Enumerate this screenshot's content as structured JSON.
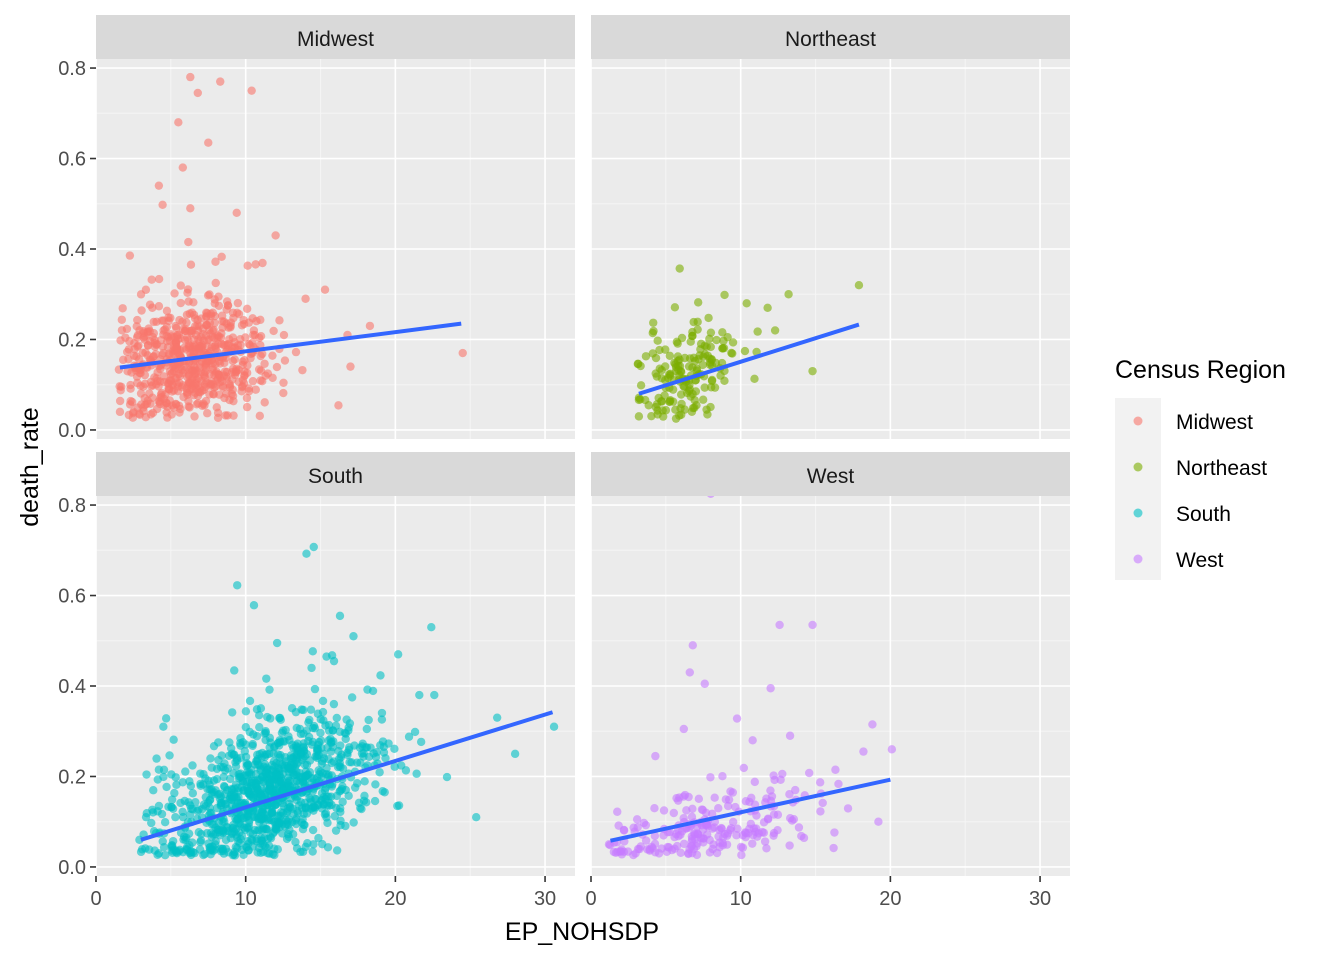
{
  "chart_data": {
    "type": "scatter",
    "facet_layout": "2x2",
    "xlabel": "EP_NOHSDP",
    "ylabel": "death_rate",
    "xlim": [
      0,
      32
    ],
    "ylim": [
      -0.02,
      0.82
    ],
    "x_ticks": [
      0,
      10,
      20,
      30
    ],
    "y_ticks": [
      0.0,
      0.2,
      0.4,
      0.6,
      0.8
    ],
    "x_tick_labels": [
      "0",
      "10",
      "20",
      "30"
    ],
    "y_tick_labels": [
      "0.0",
      "0.2",
      "0.4",
      "0.6",
      "0.8"
    ],
    "legend": {
      "title": "Census Region",
      "placement": "right",
      "entries": [
        "Midwest",
        "Northeast",
        "South",
        "West"
      ]
    },
    "grid": true,
    "point_alpha": 0.6,
    "trend_color": "#3366FF",
    "panels": [
      {
        "name": "Midwest",
        "color": "#F8766D",
        "trend": {
          "x": [
            1.6,
            24.4
          ],
          "y": [
            0.138,
            0.235
          ]
        },
        "notable_points": [
          {
            "x": 6.3,
            "y": 0.78
          },
          {
            "x": 8.3,
            "y": 0.77
          },
          {
            "x": 10.4,
            "y": 0.75
          },
          {
            "x": 6.8,
            "y": 0.745
          },
          {
            "x": 5.5,
            "y": 0.68
          },
          {
            "x": 7.5,
            "y": 0.635
          },
          {
            "x": 5.8,
            "y": 0.58
          },
          {
            "x": 4.2,
            "y": 0.54
          },
          {
            "x": 6.3,
            "y": 0.49
          },
          {
            "x": 9.4,
            "y": 0.48
          },
          {
            "x": 12.0,
            "y": 0.43
          },
          {
            "x": 15.3,
            "y": 0.31
          },
          {
            "x": 14.0,
            "y": 0.29
          },
          {
            "x": 18.3,
            "y": 0.23
          },
          {
            "x": 16.8,
            "y": 0.21
          },
          {
            "x": 17.0,
            "y": 0.14
          },
          {
            "x": 24.5,
            "y": 0.17
          },
          {
            "x": 1.6,
            "y": 0.04
          },
          {
            "x": 2.5,
            "y": 0.04
          }
        ],
        "cloud": {
          "x_center": 6.5,
          "x_spread": 2.6,
          "y_center": 0.15,
          "y_spread": 0.06,
          "x_range": [
            1.5,
            19
          ],
          "count": 640
        }
      },
      {
        "name": "Northeast",
        "color": "#7CAE00",
        "trend": {
          "x": [
            3.2,
            17.9
          ],
          "y": [
            0.08,
            0.233
          ]
        },
        "notable_points": [
          {
            "x": 17.9,
            "y": 0.32
          },
          {
            "x": 13.2,
            "y": 0.3
          },
          {
            "x": 11.8,
            "y": 0.27
          },
          {
            "x": 10.4,
            "y": 0.28
          },
          {
            "x": 14.8,
            "y": 0.13
          },
          {
            "x": 12.3,
            "y": 0.22
          },
          {
            "x": 3.2,
            "y": 0.03
          }
        ],
        "cloud": {
          "x_center": 6.5,
          "x_spread": 1.8,
          "y_center": 0.12,
          "y_spread": 0.055,
          "x_range": [
            3,
            12
          ],
          "count": 170
        }
      },
      {
        "name": "South",
        "color": "#00BFC4",
        "trend": {
          "x": [
            3.0,
            30.5
          ],
          "y": [
            0.06,
            0.342
          ]
        },
        "notable_points": [
          {
            "x": 16.3,
            "y": 0.555
          },
          {
            "x": 22.4,
            "y": 0.53
          },
          {
            "x": 17.2,
            "y": 0.51
          },
          {
            "x": 12.1,
            "y": 0.495
          },
          {
            "x": 15.4,
            "y": 0.465
          },
          {
            "x": 15.9,
            "y": 0.455
          },
          {
            "x": 14.4,
            "y": 0.44
          },
          {
            "x": 21.6,
            "y": 0.38
          },
          {
            "x": 22.6,
            "y": 0.38
          },
          {
            "x": 26.8,
            "y": 0.33
          },
          {
            "x": 30.6,
            "y": 0.31
          },
          {
            "x": 28.0,
            "y": 0.25
          },
          {
            "x": 25.4,
            "y": 0.11
          },
          {
            "x": 4.5,
            "y": 0.31
          },
          {
            "x": 4.2,
            "y": 0.215
          },
          {
            "x": 4.2,
            "y": 0.03
          },
          {
            "x": 2.9,
            "y": 0.06
          }
        ],
        "cloud": {
          "x_center": 11.5,
          "x_spread": 3.6,
          "y_center": 0.16,
          "y_spread": 0.07,
          "x_range": [
            3,
            24
          ],
          "count": 1050
        }
      },
      {
        "name": "West",
        "color": "#C77CFF",
        "trend": {
          "x": [
            1.3,
            20.0
          ],
          "y": [
            0.058,
            0.193
          ]
        },
        "notable_points": [
          {
            "x": 8.0,
            "y": 0.825
          },
          {
            "x": 12.6,
            "y": 0.535
          },
          {
            "x": 14.8,
            "y": 0.535
          },
          {
            "x": 6.8,
            "y": 0.49
          },
          {
            "x": 6.6,
            "y": 0.43
          },
          {
            "x": 7.6,
            "y": 0.405
          },
          {
            "x": 12.0,
            "y": 0.395
          },
          {
            "x": 18.8,
            "y": 0.315
          },
          {
            "x": 20.1,
            "y": 0.26
          },
          {
            "x": 18.2,
            "y": 0.255
          },
          {
            "x": 13.3,
            "y": 0.29
          },
          {
            "x": 10.8,
            "y": 0.28
          },
          {
            "x": 4.3,
            "y": 0.245
          },
          {
            "x": 6.2,
            "y": 0.305
          },
          {
            "x": 19.2,
            "y": 0.1
          },
          {
            "x": 1.2,
            "y": 0.05
          }
        ],
        "cloud": {
          "x_center": 8.0,
          "x_spread": 3.5,
          "y_center": 0.085,
          "y_spread": 0.045,
          "x_range": [
            1.2,
            19.5
          ],
          "count": 230
        }
      }
    ]
  }
}
